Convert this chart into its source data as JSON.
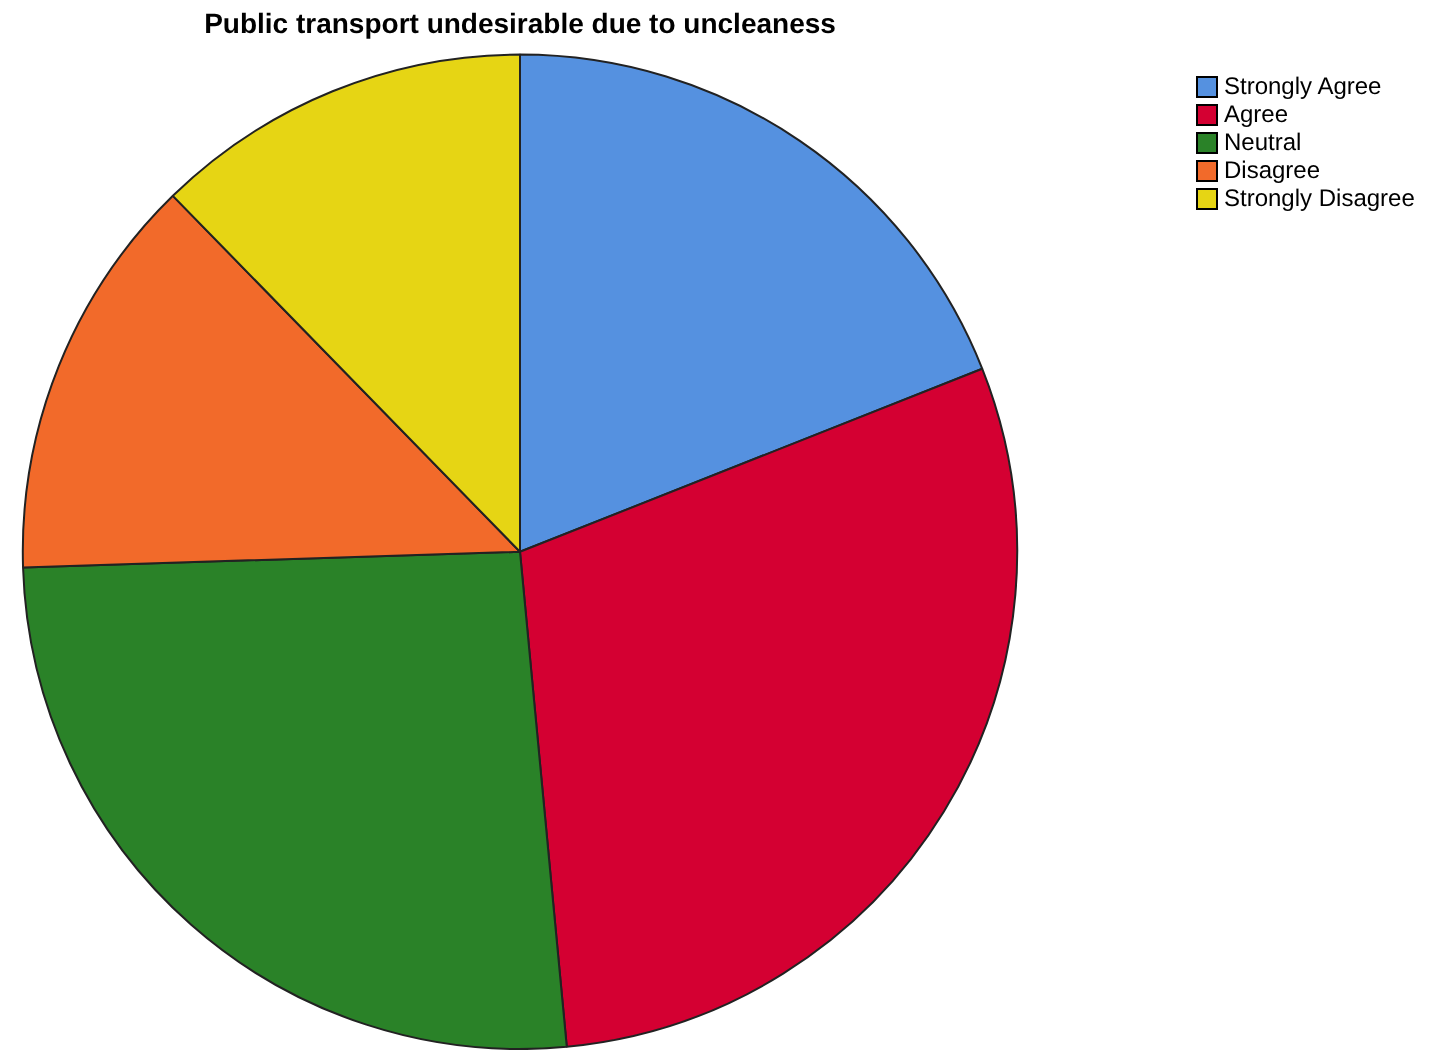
{
  "chart_data": {
    "type": "pie",
    "title": "Public transport undesirable due to uncleaness",
    "categories": [
      "Strongly Agree",
      "Agree",
      "Neutral",
      "Disagree",
      "Strongly Disagree"
    ],
    "values": [
      19,
      29.5,
      26,
      13.2,
      12.3
    ],
    "colors": [
      "#5591e0",
      "#d40032",
      "#2a8228",
      "#f26a2a",
      "#e6d514"
    ],
    "legend": "top right"
  }
}
